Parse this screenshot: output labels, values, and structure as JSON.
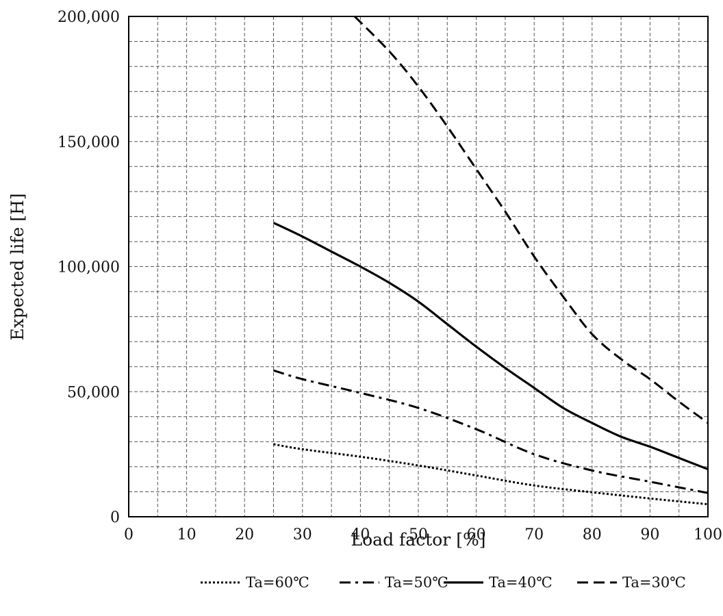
{
  "chart_data": {
    "type": "line",
    "title": "",
    "xlabel": "Load factor [%]",
    "ylabel": "Expected life [H]",
    "xlim": [
      0,
      100
    ],
    "ylim": [
      0,
      200000
    ],
    "xticks": [
      0,
      10,
      20,
      30,
      40,
      50,
      60,
      70,
      80,
      90,
      100
    ],
    "xtick_labels": [
      "0",
      "10",
      "20",
      "30",
      "40",
      "50",
      "60",
      "70",
      "80",
      "90",
      "100"
    ],
    "yticks": [
      0,
      50000,
      100000,
      150000,
      200000
    ],
    "ytick_labels": [
      "0",
      "50,000",
      "100,000",
      "150,000",
      "200,000"
    ],
    "x_minor_step": 5,
    "y_minor_step": 10000,
    "grid": true,
    "legend_position": "bottom",
    "series": [
      {
        "name": "Ta=60℃",
        "style": "dotted",
        "x": [
          25,
          30,
          40,
          50,
          60,
          70,
          80,
          90,
          100
        ],
        "y": [
          29000,
          27000,
          24000,
          20500,
          16500,
          12500,
          9800,
          7300,
          5000
        ]
      },
      {
        "name": "Ta=50℃",
        "style": "dashdot",
        "x": [
          25,
          30,
          40,
          50,
          60,
          70,
          80,
          90,
          100
        ],
        "y": [
          58500,
          55000,
          49500,
          43500,
          35000,
          25000,
          18500,
          14000,
          9500
        ]
      },
      {
        "name": "Ta=40℃",
        "style": "solid",
        "x": [
          25,
          30,
          35,
          40,
          45,
          50,
          55,
          60,
          65,
          70,
          75,
          80,
          85,
          90,
          95,
          100
        ],
        "y": [
          117500,
          112000,
          106000,
          100000,
          93500,
          86000,
          77000,
          68000,
          59500,
          51500,
          43500,
          37500,
          32000,
          28000,
          23500,
          19000
        ]
      },
      {
        "name": "Ta=30℃",
        "style": "dashed",
        "x": [
          39,
          45,
          50,
          55,
          60,
          65,
          70,
          75,
          80,
          85,
          90,
          95,
          100
        ],
        "y": [
          200000,
          186000,
          172000,
          156000,
          139000,
          122000,
          104000,
          88000,
          73000,
          63000,
          55000,
          46000,
          37500
        ]
      }
    ]
  }
}
